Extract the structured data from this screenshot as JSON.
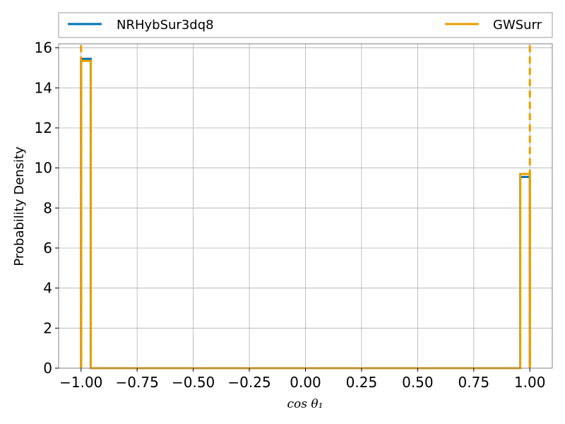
{
  "chart_data": {
    "type": "line",
    "title": "",
    "xlabel": "cos θ₁",
    "ylabel": "Probability Density",
    "xlim": [
      -1.1,
      1.1
    ],
    "ylim": [
      0,
      16.2
    ],
    "x_ticks": [
      "−1.00",
      "−0.75",
      "−0.50",
      "−0.25",
      "0.00",
      "0.25",
      "0.50",
      "0.75",
      "1.00"
    ],
    "y_ticks": [
      "0",
      "2",
      "4",
      "6",
      "8",
      "10",
      "12",
      "14",
      "16"
    ],
    "grid": true,
    "legend_position": "top",
    "series": [
      {
        "name": "NRHybSur3dq8",
        "color": "#0072b2",
        "style": "step-histogram",
        "bins": [
          {
            "x0": -1.0,
            "x1": -0.957,
            "value": 15.45
          },
          {
            "x0": -0.957,
            "x1": 0.957,
            "value": 0.0
          },
          {
            "x0": 0.957,
            "x1": 1.0,
            "value": 9.55
          }
        ]
      },
      {
        "name": "GWSurr",
        "color": "#e69f00",
        "style": "step-histogram",
        "bins": [
          {
            "x0": -1.0,
            "x1": -0.957,
            "value": 15.35
          },
          {
            "x0": -0.957,
            "x1": 0.957,
            "value": 0.0
          },
          {
            "x0": 0.957,
            "x1": 1.0,
            "value": 9.7
          }
        ]
      }
    ],
    "reference_lines": [
      {
        "x": -1.0,
        "style": "dashed",
        "color": "#e69f00"
      },
      {
        "x": 1.0,
        "style": "dashed",
        "color": "#e69f00"
      }
    ]
  }
}
